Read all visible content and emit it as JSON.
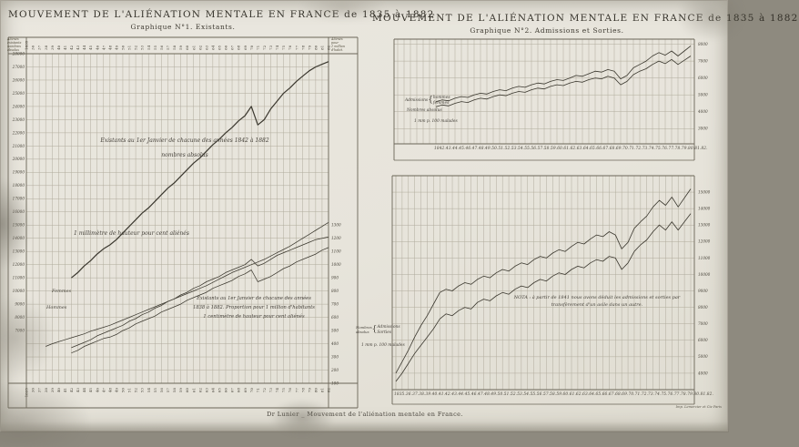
{
  "page": {
    "footer": "Dr Lunier _ Mouvement de l'aliénation mentale en France.",
    "printer": "Imp. Lemercier et Cie Paris",
    "ink_color": "#3a372e",
    "grid_color": "#b0ab9c",
    "frame_color": "#6a6557",
    "paper_color": "#e7e4db"
  },
  "left_chart": {
    "title": "MOUVEMENT DE L'ALIÉNATION MENTALE EN FRANCE de 1835 à 1882",
    "subtitle": "Graphique N°1.  Existants.",
    "left_axis_header": "Aliénés\nexistants\nnombres\nabsolus",
    "right_axis_header": "Aliénés\npour\n1 million\nd'habit.",
    "annotation_absolus": "Existants au 1er Janvier de chacune des années 1842 à 1882\nnombres absolus",
    "annotation_echelle_abs": "1 millimètre de hauteur pour cent aliénés",
    "annotation_proportion": "Existants au 1er Janvier de chacune des années\n1838 à 1882. Proportion pour 1 million d'habitants\n1 centimètre  de hauteur pour cent aliénés",
    "femmes_label": "Femmes",
    "hommes_label": "Hommes"
  },
  "right_charts": {
    "title": "MOUVEMENT DE L'ALIÉNATION MENTALE EN FRANCE de 1835 à 1882",
    "subtitle": "Graphique N°2.  Admissions et Sorties.",
    "top_legend": {
      "group_label": "Admissions",
      "brace": "{",
      "item1": "hommes",
      "item2": "femmes",
      "sub_label": "Nombres absolus",
      "scale_note": "1 mm p. 100 malades",
      "x_axis_line": "1842.43.44.45.46.47.48.49.50.51.52.53.54.55.56.57.58.59.60.61.62.63.64.65.66.67.68.69.70.71.72.73.74.75.76.77.78.79.80.81.82."
    },
    "bottom_legend": {
      "group_label": "Nombres\nabsolus",
      "brace": "{",
      "item1": "Admissions",
      "item2": "Sorties",
      "scale_note": "1 mm p. 100 malades",
      "nota": "NOTA : à partir de 1841 nous avons déduit les admissions et sorties par transfèrement d'un asile dans un autre.",
      "x_axis_line": "1835.36.37.38.39.40.41.42.43.44.45.46.47.48.49.50.51.52.53.54.55.56.57.58.59.60.61.62.63.64.65.66.67.68.69.70.71.72.73.74.75.76.77.78.79.80.81.82."
    }
  },
  "chart_data": [
    {
      "type": "line",
      "title": "Graphique N°1. Existants, 1835-1882",
      "categories": [
        "1835",
        "36",
        "37",
        "38",
        "39",
        "40",
        "41",
        "42",
        "43",
        "44",
        "45",
        "46",
        "47",
        "48",
        "49",
        "50",
        "51",
        "52",
        "53",
        "54",
        "55",
        "56",
        "57",
        "58",
        "59",
        "60",
        "61",
        "62",
        "63",
        "64",
        "65",
        "66",
        "67",
        "68",
        "69",
        "70",
        "71",
        "72",
        "73",
        "74",
        "75",
        "76",
        "77",
        "78",
        "79",
        "80",
        "81",
        "82"
      ],
      "y_left": {
        "label": "Aliénés existants, nombres absolus",
        "min": 3000,
        "max": 28000,
        "step": 1000,
        "label_min": 7000,
        "label_max": 28000
      },
      "y_right": {
        "label": "Proportion pour 1 million d'habitants",
        "min": 100,
        "max": 2600,
        "step": 100,
        "label_min": 100,
        "label_max": 1300
      },
      "grid": true,
      "legend_position": "inline",
      "series": [
        {
          "name": "Existants total (nombres absolus)",
          "axis": "left",
          "emphasis": true,
          "values": [
            null,
            null,
            null,
            null,
            null,
            null,
            null,
            11000,
            11400,
            11900,
            12300,
            12800,
            13200,
            13500,
            13900,
            14400,
            14900,
            15400,
            15900,
            16300,
            16800,
            17300,
            17800,
            18200,
            18700,
            19200,
            19700,
            20100,
            20600,
            21100,
            21500,
            22000,
            22400,
            22900,
            23300,
            24000,
            22600,
            23000,
            23800,
            24400,
            25000,
            25400,
            25900,
            26300,
            26700,
            27000,
            27200,
            27400
          ]
        },
        {
          "name": "Femmes",
          "axis": "left",
          "emphasis": false,
          "values": [
            null,
            null,
            null,
            null,
            null,
            null,
            null,
            5700,
            5900,
            6100,
            6300,
            6600,
            6800,
            7000,
            7200,
            7400,
            7700,
            7900,
            8200,
            8400,
            8700,
            8900,
            9200,
            9400,
            9700,
            9900,
            10200,
            10400,
            10700,
            10900,
            11100,
            11400,
            11600,
            11800,
            12000,
            12400,
            11900,
            12100,
            12400,
            12700,
            12900,
            13100,
            13300,
            13500,
            13700,
            13900,
            14000,
            14100
          ]
        },
        {
          "name": "Hommes",
          "axis": "left",
          "emphasis": false,
          "values": [
            null,
            null,
            null,
            null,
            null,
            null,
            null,
            5300,
            5500,
            5800,
            6000,
            6200,
            6400,
            6500,
            6700,
            7000,
            7200,
            7500,
            7700,
            7900,
            8100,
            8400,
            8600,
            8800,
            9000,
            9300,
            9500,
            9700,
            9900,
            10200,
            10400,
            10600,
            10800,
            11100,
            11300,
            11600,
            10700,
            10900,
            11100,
            11400,
            11700,
            11900,
            12200,
            12400,
            12600,
            12800,
            13100,
            13300
          ]
        },
        {
          "name": "Proportion pour 1 million d'habitants",
          "axis": "right",
          "emphasis": false,
          "values": [
            null,
            null,
            null,
            380,
            400,
            415,
            430,
            445,
            460,
            475,
            495,
            510,
            525,
            540,
            560,
            580,
            600,
            620,
            640,
            660,
            680,
            700,
            720,
            740,
            760,
            780,
            800,
            820,
            840,
            865,
            890,
            915,
            940,
            960,
            980,
            1000,
            1020,
            1040,
            1065,
            1090,
            1115,
            1140,
            1170,
            1200,
            1230,
            1260,
            1290,
            1320
          ]
        }
      ]
    },
    {
      "type": "line",
      "title": "Graphique N°2 (haut). Admissions, nombres absolus, 1842-1882",
      "categories": [
        "1842",
        "43",
        "44",
        "45",
        "46",
        "47",
        "48",
        "49",
        "50",
        "51",
        "52",
        "53",
        "54",
        "55",
        "56",
        "57",
        "58",
        "59",
        "60",
        "61",
        "62",
        "63",
        "64",
        "65",
        "66",
        "67",
        "68",
        "69",
        "70",
        "71",
        "72",
        "73",
        "74",
        "75",
        "76",
        "77",
        "78",
        "79",
        "80",
        "81",
        "82"
      ],
      "y": {
        "label": "Admissions, nombres absolus",
        "min": 2100,
        "max": 8300,
        "step": 1000,
        "label_min": 3000,
        "label_max": 8000
      },
      "grid": true,
      "series": [
        {
          "name": "Admissions hommes",
          "emphasis": false,
          "values": [
            4600,
            4700,
            4650,
            4800,
            4900,
            4850,
            5000,
            5100,
            5050,
            5200,
            5300,
            5250,
            5400,
            5500,
            5450,
            5600,
            5700,
            5650,
            5800,
            5900,
            5850,
            6000,
            6150,
            6100,
            6250,
            6400,
            6350,
            6500,
            6400,
            5950,
            6150,
            6600,
            6800,
            7000,
            7300,
            7500,
            7350,
            7600,
            7300,
            7600,
            7900
          ]
        },
        {
          "name": "Admissions femmes",
          "emphasis": false,
          "values": [
            4300,
            4400,
            4350,
            4500,
            4600,
            4550,
            4700,
            4800,
            4750,
            4900,
            5000,
            4950,
            5100,
            5200,
            5150,
            5300,
            5400,
            5350,
            5500,
            5600,
            5550,
            5700,
            5800,
            5750,
            5900,
            6000,
            5950,
            6100,
            6000,
            5600,
            5800,
            6200,
            6400,
            6550,
            6800,
            7000,
            6850,
            7100,
            6800,
            7050,
            7300
          ]
        }
      ]
    },
    {
      "type": "line",
      "title": "Graphique N°2 (bas). Admissions et Sorties, nombres absolus, 1835-1882",
      "categories": [
        "1835",
        "36",
        "37",
        "38",
        "39",
        "40",
        "41",
        "42",
        "43",
        "44",
        "45",
        "46",
        "47",
        "48",
        "49",
        "50",
        "51",
        "52",
        "53",
        "54",
        "55",
        "56",
        "57",
        "58",
        "59",
        "60",
        "61",
        "62",
        "63",
        "64",
        "65",
        "66",
        "67",
        "68",
        "69",
        "70",
        "71",
        "72",
        "73",
        "74",
        "75",
        "76",
        "77",
        "78",
        "79",
        "80",
        "81",
        "82"
      ],
      "y": {
        "label": "Nombres absolus",
        "min": 3000,
        "max": 16000,
        "step": 1000,
        "label_min": 4000,
        "label_max": 15000
      },
      "grid": true,
      "series": [
        {
          "name": "Admissions",
          "emphasis": false,
          "values": [
            4000,
            4700,
            5400,
            6200,
            6900,
            7500,
            8200,
            8900,
            9100,
            9000,
            9300,
            9500,
            9400,
            9700,
            9900,
            9800,
            10100,
            10300,
            10200,
            10500,
            10700,
            10600,
            10900,
            11100,
            11000,
            11300,
            11500,
            11400,
            11700,
            11950,
            11850,
            12150,
            12400,
            12300,
            12600,
            12400,
            11550,
            11950,
            12800,
            13200,
            13550,
            14100,
            14500,
            14200,
            14700,
            14100,
            14650,
            15200
          ]
        },
        {
          "name": "Sorties",
          "emphasis": false,
          "values": [
            3500,
            4000,
            4600,
            5200,
            5700,
            6200,
            6700,
            7300,
            7600,
            7500,
            7800,
            8000,
            7900,
            8300,
            8500,
            8400,
            8700,
            8900,
            8800,
            9100,
            9300,
            9200,
            9500,
            9700,
            9600,
            9900,
            10100,
            10000,
            10300,
            10500,
            10400,
            10700,
            10900,
            10800,
            11100,
            11000,
            10300,
            10700,
            11400,
            11800,
            12100,
            12600,
            13000,
            12700,
            13200,
            12700,
            13200,
            13700
          ]
        }
      ]
    }
  ]
}
